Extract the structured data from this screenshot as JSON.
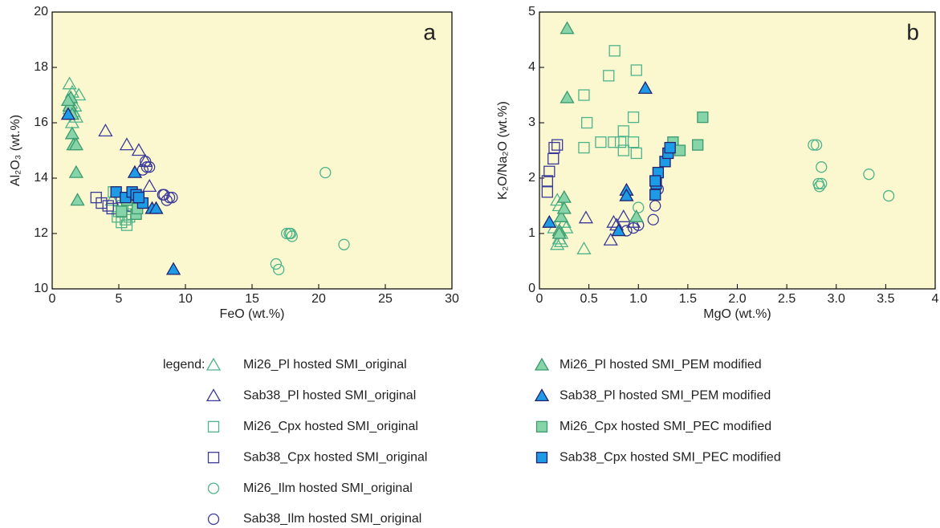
{
  "legend": {
    "label": "legend:",
    "entries": [
      {
        "name": "Mi26_Pl hosted SMI_original",
        "marker": "triangle",
        "color": "#4db38a",
        "fill": "none"
      },
      {
        "name": "Sab38_Pl hosted SMI_original",
        "marker": "triangle",
        "color": "#3b3a9a",
        "fill": "none"
      },
      {
        "name": "Mi26_Cpx hosted SMI_original",
        "marker": "square",
        "color": "#4db38a",
        "fill": "none"
      },
      {
        "name": "Sab38_Cpx hosted SMI_original",
        "marker": "square",
        "color": "#3b3a9a",
        "fill": "none"
      },
      {
        "name": "Mi26_Ilm hosted SMI_original",
        "marker": "circle",
        "color": "#4db38a",
        "fill": "none"
      },
      {
        "name": "Sab38_Ilm hosted SMI_original",
        "marker": "circle",
        "color": "#3b3a9a",
        "fill": "none"
      },
      {
        "name": "Mi26_Pl hosted SMI_PEM modified",
        "marker": "triangle",
        "color": "#3c9a6e",
        "fill": "#86d4a8"
      },
      {
        "name": "Sab38_Pl hosted SMI_PEM modified",
        "marker": "triangle",
        "color": "#23236e",
        "fill": "#1e9be6"
      },
      {
        "name": "Mi26_Cpx hosted SMI_PEC modified",
        "marker": "square",
        "color": "#3c9a6e",
        "fill": "#86d4a8"
      },
      {
        "name": "Sab38_Cpx hosted SMI_PEC modified",
        "marker": "square",
        "color": "#23236e",
        "fill": "#1e9be6"
      }
    ]
  },
  "chart_data": [
    {
      "type": "scatter",
      "panel_label": "a",
      "x_label": "FeO (wt.%)",
      "y_label": "Al₂O₃ (wt.%)",
      "background": "#fbf8d0",
      "xlim": [
        0,
        30
      ],
      "xticks": [
        0,
        5,
        10,
        15,
        20,
        25,
        30
      ],
      "ylim": [
        10,
        20
      ],
      "yticks": [
        10,
        12,
        14,
        16,
        18,
        20
      ],
      "series": [
        {
          "x": [
            1.3,
            1.5,
            2.0,
            1.4,
            1.6,
            1.8,
            1.5,
            1.3,
            1.7,
            4.5
          ],
          "y": [
            17.4,
            17.1,
            17.0,
            16.7,
            16.4,
            16.2,
            16.0,
            16.5,
            16.6,
            13.2
          ]
        },
        {
          "x": [
            4.0,
            5.6,
            6.5,
            7.3,
            7.0
          ],
          "y": [
            15.7,
            15.2,
            15.0,
            13.7,
            14.6
          ]
        },
        {
          "x": [
            5.2,
            5.5,
            5.8,
            5.0,
            5.3,
            4.6,
            5.6,
            6.0,
            4.9
          ],
          "y": [
            12.4,
            12.5,
            12.6,
            12.8,
            13.0,
            13.5,
            12.3,
            12.7,
            12.6
          ]
        },
        {
          "x": [
            3.3,
            3.7,
            4.2,
            4.5,
            5.2,
            6.2,
            5.8
          ],
          "y": [
            13.3,
            13.1,
            13.0,
            12.9,
            13.3,
            13.3,
            13.0
          ]
        },
        {
          "x": [
            20.5,
            17.8,
            18.0,
            17.6,
            16.8,
            17.0,
            21.9,
            17.9
          ],
          "y": [
            14.2,
            12.0,
            11.9,
            12.0,
            10.9,
            10.7,
            11.6,
            12.0
          ]
        },
        {
          "x": [
            7.0,
            7.1,
            7.3,
            6.8,
            8.3,
            8.8,
            9.0,
            8.6,
            8.4
          ],
          "y": [
            14.6,
            14.4,
            14.4,
            14.3,
            13.4,
            13.3,
            13.3,
            13.2,
            13.4
          ]
        },
        {
          "x": [
            1.4,
            1.3,
            1.5,
            1.5,
            1.6,
            1.8,
            1.8,
            1.9,
            1.2
          ],
          "y": [
            16.9,
            16.6,
            16.3,
            15.6,
            15.2,
            15.2,
            14.2,
            13.2,
            16.8
          ]
        },
        {
          "x": [
            1.2,
            6.2,
            7.5,
            7.8,
            9.1
          ],
          "y": [
            16.3,
            14.2,
            12.9,
            12.9,
            10.7
          ]
        },
        {
          "x": [
            5.2,
            6.3,
            6.4,
            5.6
          ],
          "y": [
            12.8,
            12.7,
            12.9,
            13.2
          ]
        },
        {
          "x": [
            4.8,
            5.5,
            6.0,
            6.3,
            6.8,
            6.5
          ],
          "y": [
            13.5,
            13.3,
            13.5,
            13.4,
            13.1,
            13.3
          ]
        }
      ]
    },
    {
      "type": "scatter",
      "panel_label": "b",
      "x_label": "MgO (wt.%)",
      "y_label": "K₂O/Na₂O (wt.%)",
      "background": "#fbf8d0",
      "xlim": [
        0,
        4
      ],
      "xticks": [
        0,
        0.5,
        {
          "value": 1,
          "label": "1.0"
        },
        1.5,
        {
          "value": 2,
          "label": "2.0"
        },
        2.5,
        {
          "value": 3,
          "label": "3.0"
        },
        3.5,
        4
      ],
      "ylim": [
        0,
        5
      ],
      "yticks": [
        0,
        1,
        2,
        3,
        4,
        5
      ],
      "series": [
        {
          "x": [
            0.18,
            0.2,
            0.22,
            0.15,
            0.25,
            0.2,
            0.18,
            0.22,
            0.45,
            0.27
          ],
          "y": [
            0.8,
            0.9,
            1.0,
            1.1,
            1.2,
            1.5,
            1.6,
            0.85,
            0.72,
            1.1
          ]
        },
        {
          "x": [
            0.47,
            0.75,
            0.78,
            0.85,
            0.72,
            0.95
          ],
          "y": [
            1.28,
            1.2,
            1.15,
            1.3,
            0.88,
            1.2
          ]
        },
        {
          "x": [
            0.45,
            0.48,
            0.45,
            0.62,
            0.7,
            0.76,
            0.82,
            0.85,
            0.85,
            0.95,
            0.98,
            0.95,
            0.98,
            0.75
          ],
          "y": [
            3.5,
            3.0,
            2.55,
            2.65,
            3.85,
            4.3,
            2.65,
            2.85,
            2.5,
            3.1,
            3.95,
            2.65,
            2.45,
            2.65
          ]
        },
        {
          "x": [
            0.08,
            0.08,
            0.1,
            0.14,
            0.15,
            0.18
          ],
          "y": [
            1.75,
            1.95,
            2.12,
            2.35,
            2.55,
            2.6
          ]
        },
        {
          "x": [
            2.77,
            2.8,
            2.85,
            2.82,
            2.83,
            2.85,
            3.33,
            3.53,
            1.0
          ],
          "y": [
            2.6,
            2.6,
            2.2,
            1.9,
            1.85,
            1.9,
            2.07,
            1.68,
            1.47
          ]
        },
        {
          "x": [
            0.88,
            0.95,
            1.0,
            1.15,
            1.17,
            1.2
          ],
          "y": [
            1.05,
            1.1,
            1.15,
            1.25,
            1.5,
            1.8
          ]
        },
        {
          "x": [
            0.28,
            0.28,
            0.2,
            0.22,
            0.25,
            0.25,
            0.98,
            0.2
          ],
          "y": [
            4.7,
            3.45,
            1.05,
            1.3,
            1.45,
            1.65,
            1.3,
            1.0
          ]
        },
        {
          "x": [
            1.07,
            0.88,
            0.88,
            0.8,
            0.1
          ],
          "y": [
            3.62,
            1.78,
            1.68,
            1.05,
            1.2
          ]
        },
        {
          "x": [
            1.35,
            1.42,
            1.6,
            1.65
          ],
          "y": [
            2.65,
            2.5,
            2.6,
            3.1
          ]
        },
        {
          "x": [
            1.17,
            1.18,
            1.2,
            1.27,
            1.3,
            1.32,
            1.17
          ],
          "y": [
            1.7,
            1.9,
            2.1,
            2.3,
            2.45,
            2.55,
            1.95
          ]
        }
      ]
    }
  ]
}
